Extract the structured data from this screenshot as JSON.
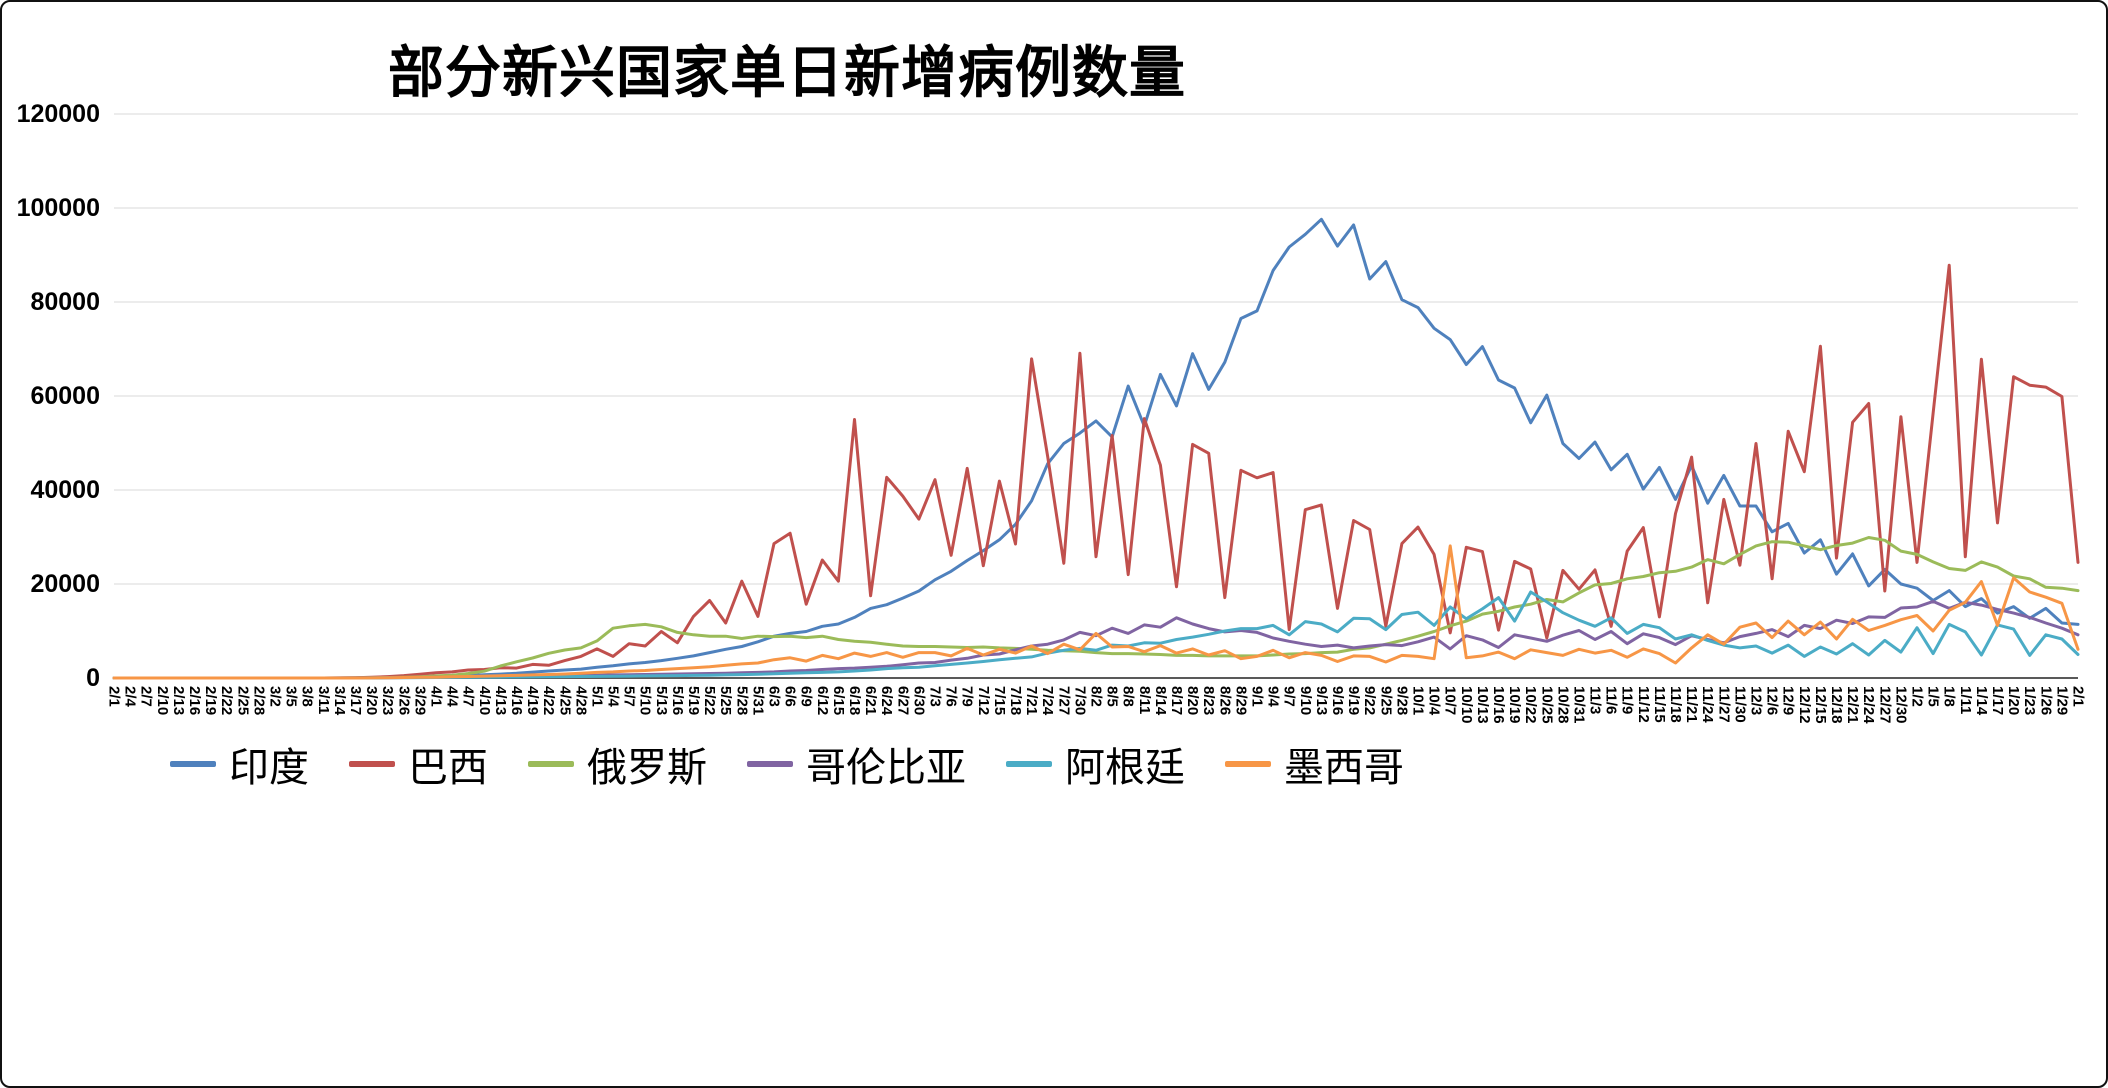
{
  "chart_data": {
    "type": "line",
    "title": "部分新兴国家单日新增病例数量",
    "xlabel": "",
    "ylabel": "",
    "ylim": [
      0,
      120000
    ],
    "y_ticks": [
      0,
      20000,
      40000,
      60000,
      80000,
      100000,
      120000
    ],
    "grid": true,
    "legend_position": "bottom",
    "axis_color": "#595959",
    "gridline_color": "#d9d9d9",
    "x_labels": [
      "2/1",
      "2/4",
      "2/7",
      "2/10",
      "2/13",
      "2/16",
      "2/19",
      "2/22",
      "2/25",
      "2/28",
      "3/2",
      "3/5",
      "3/8",
      "3/11",
      "3/14",
      "3/17",
      "3/20",
      "3/23",
      "3/26",
      "3/29",
      "4/1",
      "4/4",
      "4/7",
      "4/10",
      "4/13",
      "4/16",
      "4/19",
      "4/22",
      "4/25",
      "4/28",
      "5/1",
      "5/4",
      "5/7",
      "5/10",
      "5/13",
      "5/16",
      "5/19",
      "5/22",
      "5/25",
      "5/28",
      "5/31",
      "6/3",
      "6/6",
      "6/9",
      "6/12",
      "6/15",
      "6/18",
      "6/21",
      "6/24",
      "6/27",
      "6/30",
      "7/3",
      "7/6",
      "7/9",
      "7/12",
      "7/15",
      "7/18",
      "7/21",
      "7/24",
      "7/27",
      "7/30",
      "8/2",
      "8/5",
      "8/8",
      "8/11",
      "8/14",
      "8/17",
      "8/20",
      "8/23",
      "8/26",
      "8/29",
      "9/1",
      "9/4",
      "9/7",
      "9/10",
      "9/13",
      "9/16",
      "9/19",
      "9/22",
      "9/25",
      "9/28",
      "10/1",
      "10/4",
      "10/7",
      "10/10",
      "10/13",
      "10/16",
      "10/19",
      "10/22",
      "10/25",
      "10/28",
      "10/31",
      "11/3",
      "11/6",
      "11/9",
      "11/12",
      "11/15",
      "11/18",
      "11/21",
      "11/24",
      "11/27",
      "11/30",
      "12/3",
      "12/6",
      "12/9",
      "12/12",
      "12/15",
      "12/18",
      "12/21",
      "12/24",
      "12/27",
      "12/30",
      "1/2",
      "1/5",
      "1/8",
      "1/11",
      "1/14",
      "1/17",
      "1/20",
      "1/23",
      "1/26",
      "1/29",
      "2/1"
    ],
    "series": [
      {
        "name": "印度",
        "key": "india",
        "color": "#4F81BD",
        "values": [
          0,
          0,
          0,
          0,
          0,
          0,
          0,
          0,
          0,
          0,
          3,
          5,
          6,
          10,
          15,
          30,
          60,
          100,
          150,
          200,
          300,
          420,
          540,
          680,
          820,
          1000,
          1250,
          1490,
          1700,
          1900,
          2300,
          2600,
          3000,
          3300,
          3700,
          4200,
          4700,
          5400,
          6100,
          6700,
          7700,
          8900,
          9500,
          9900,
          11000,
          11500,
          12900,
          14800,
          15600,
          17000,
          18500,
          20900,
          22700,
          25000,
          27100,
          29400,
          32700,
          37700,
          45600,
          49900,
          52100,
          54700,
          51300,
          62100,
          53600,
          64600,
          57900,
          69000,
          61400,
          67200,
          76500,
          78100,
          86700,
          91700,
          94400,
          97600,
          91900,
          96400,
          84900,
          88600,
          80500,
          78800,
          74400,
          72000,
          66700,
          70500,
          63400,
          61700,
          54300,
          60200,
          49900,
          46700,
          50200,
          44300,
          47600,
          40200,
          44800,
          38000,
          45200,
          37200,
          43100,
          36600,
          36600,
          31100,
          32900,
          26600,
          29400,
          22100,
          26400,
          19600,
          23100,
          20000,
          19100,
          16500,
          18600,
          15200,
          16900,
          13800,
          15200,
          12700,
          14800,
          11700,
          11400
        ]
      },
      {
        "name": "巴西",
        "key": "brazil",
        "color": "#C0504D",
        "values": [
          0,
          0,
          0,
          0,
          0,
          0,
          0,
          0,
          0,
          0,
          0,
          0,
          1,
          5,
          20,
          60,
          150,
          300,
          500,
          800,
          1100,
          1300,
          1700,
          1800,
          2200,
          2100,
          2900,
          2700,
          3700,
          4600,
          6200,
          4600,
          7300,
          6800,
          9900,
          7500,
          13100,
          16500,
          11700,
          20600,
          13100,
          28600,
          30800,
          15700,
          25100,
          20600,
          55000,
          17500,
          42700,
          38700,
          33800,
          42200,
          26100,
          44600,
          23900,
          41900,
          28500,
          67900,
          47100,
          24400,
          69100,
          25800,
          51600,
          22000,
          55200,
          45300,
          19400,
          49700,
          47800,
          17100,
          44200,
          42600,
          43700,
          10300,
          35800,
          36800,
          14800,
          33500,
          31600,
          11000,
          28600,
          32100,
          26300,
          9600,
          27800,
          26900,
          10200,
          24800,
          23200,
          8500,
          22900,
          18900,
          23000,
          11000,
          27000,
          32000,
          13000,
          35000,
          47000,
          16000,
          38000,
          24000,
          49900,
          21100,
          52500,
          43900,
          70600,
          25500,
          54400,
          58400,
          18500,
          55600,
          24600,
          56300,
          87800,
          25800,
          67800,
          33000,
          64100,
          62300,
          61900,
          59900,
          24600
        ]
      },
      {
        "name": "俄罗斯",
        "key": "russia",
        "color": "#9BBB59",
        "values": [
          0,
          0,
          0,
          0,
          0,
          0,
          0,
          0,
          0,
          0,
          0,
          0,
          0,
          2,
          10,
          30,
          60,
          100,
          180,
          270,
          440,
          580,
          950,
          1450,
          2550,
          3450,
          4250,
          5250,
          5950,
          6400,
          7900,
          10600,
          11100,
          11400,
          10900,
          9700,
          9200,
          8900,
          8900,
          8400,
          8900,
          8800,
          8900,
          8600,
          8900,
          8200,
          7800,
          7600,
          7200,
          6800,
          6700,
          6700,
          6600,
          6500,
          6600,
          6400,
          6300,
          6100,
          5900,
          5800,
          5700,
          5400,
          5200,
          5200,
          5100,
          5000,
          4800,
          4800,
          4700,
          4700,
          4700,
          4700,
          4900,
          5100,
          5200,
          5400,
          5500,
          6100,
          6400,
          7200,
          8000,
          8900,
          9900,
          11100,
          12100,
          13600,
          14200,
          15100,
          15700,
          16700,
          16200,
          18100,
          19800,
          20100,
          21100,
          21600,
          22400,
          22700,
          23600,
          25200,
          24300,
          26300,
          28100,
          29000,
          28900,
          28100,
          27300,
          28200,
          28700,
          29900,
          29300,
          27000,
          26300,
          24700,
          23300,
          22900,
          24700,
          23600,
          21700,
          21100,
          19300,
          19100,
          18600
        ]
      },
      {
        "name": "哥伦比亚",
        "key": "colombia",
        "color": "#8064A2",
        "values": [
          0,
          0,
          0,
          0,
          0,
          0,
          0,
          0,
          0,
          0,
          0,
          0,
          1,
          3,
          10,
          20,
          40,
          70,
          100,
          130,
          160,
          200,
          240,
          280,
          320,
          360,
          400,
          450,
          500,
          550,
          600,
          650,
          700,
          750,
          800,
          850,
          900,
          950,
          1000,
          1100,
          1200,
          1300,
          1500,
          1600,
          1800,
          2000,
          2100,
          2300,
          2500,
          2800,
          3200,
          3300,
          3800,
          4200,
          4900,
          5100,
          6000,
          6800,
          7200,
          8100,
          9700,
          9000,
          10600,
          9500,
          11300,
          10800,
          12800,
          11500,
          10500,
          9800,
          10100,
          9700,
          8500,
          7800,
          7200,
          6700,
          7000,
          6400,
          6800,
          7100,
          6900,
          7700,
          8700,
          6200,
          9000,
          8100,
          6500,
          9200,
          8500,
          7800,
          9100,
          10100,
          8200,
          9900,
          7300,
          9400,
          8600,
          7100,
          9000,
          8200,
          7500,
          8800,
          9500,
          10300,
          8800,
          11200,
          10500,
          12300,
          11600,
          13000,
          12900,
          14900,
          15100,
          16300,
          14800,
          16100,
          15500,
          14600,
          13800,
          12900,
          11700,
          10600,
          9200
        ]
      },
      {
        "name": "阿根廷",
        "key": "argentina",
        "color": "#4BACC6",
        "values": [
          0,
          0,
          0,
          0,
          0,
          0,
          0,
          0,
          0,
          0,
          0,
          0,
          1,
          2,
          5,
          10,
          20,
          40,
          60,
          90,
          110,
          130,
          150,
          170,
          190,
          210,
          230,
          260,
          290,
          320,
          350,
          380,
          410,
          440,
          470,
          500,
          550,
          600,
          650,
          720,
          800,
          900,
          1000,
          1100,
          1200,
          1300,
          1500,
          1700,
          2000,
          2200,
          2300,
          2600,
          2900,
          3200,
          3500,
          3900,
          4200,
          4500,
          5300,
          5900,
          6300,
          5900,
          7000,
          6800,
          7500,
          7400,
          8200,
          8700,
          9300,
          10000,
          10500,
          10500,
          11200,
          9200,
          12000,
          11500,
          9800,
          12700,
          12600,
          10300,
          13500,
          14000,
          11200,
          15100,
          12600,
          14700,
          17100,
          12100,
          18300,
          16200,
          13900,
          12300,
          11000,
          12800,
          9500,
          11400,
          10700,
          8300,
          9200,
          8000,
          7000,
          6400,
          6800,
          5300,
          7000,
          4600,
          6600,
          5100,
          7300,
          4900,
          8000,
          5500,
          10700,
          5200,
          11400,
          9800,
          4900,
          11300,
          10400,
          4800,
          9200,
          8300,
          5000
        ]
      },
      {
        "name": "墨西哥",
        "key": "mexico",
        "color": "#F79646",
        "values": [
          0,
          0,
          0,
          0,
          0,
          0,
          0,
          0,
          0,
          0,
          0,
          0,
          0,
          1,
          5,
          10,
          30,
          65,
          100,
          140,
          180,
          250,
          320,
          400,
          480,
          560,
          650,
          750,
          850,
          1000,
          1200,
          1300,
          1500,
          1600,
          1800,
          2000,
          2200,
          2400,
          2700,
          3000,
          3200,
          3900,
          4300,
          3600,
          4800,
          4100,
          5300,
          4600,
          5400,
          4400,
          5400,
          5400,
          4700,
          6300,
          4900,
          6100,
          5300,
          6800,
          5200,
          7200,
          6000,
          9500,
          6600,
          6700,
          5600,
          6900,
          5300,
          6200,
          4900,
          5800,
          4100,
          4600,
          5900,
          4300,
          5400,
          4800,
          3500,
          4700,
          4600,
          3400,
          4800,
          4600,
          4100,
          28100,
          4300,
          4700,
          5500,
          4100,
          6000,
          5400,
          4800,
          6100,
          5300,
          5900,
          4400,
          6200,
          5200,
          3200,
          6400,
          9200,
          7200,
          10800,
          11700,
          8600,
          12100,
          9200,
          11900,
          8300,
          12500,
          10100,
          11200,
          12400,
          13300,
          10000,
          14400,
          16100,
          20500,
          11200,
          21300,
          18300,
          17200,
          15900,
          6100
        ]
      }
    ]
  }
}
